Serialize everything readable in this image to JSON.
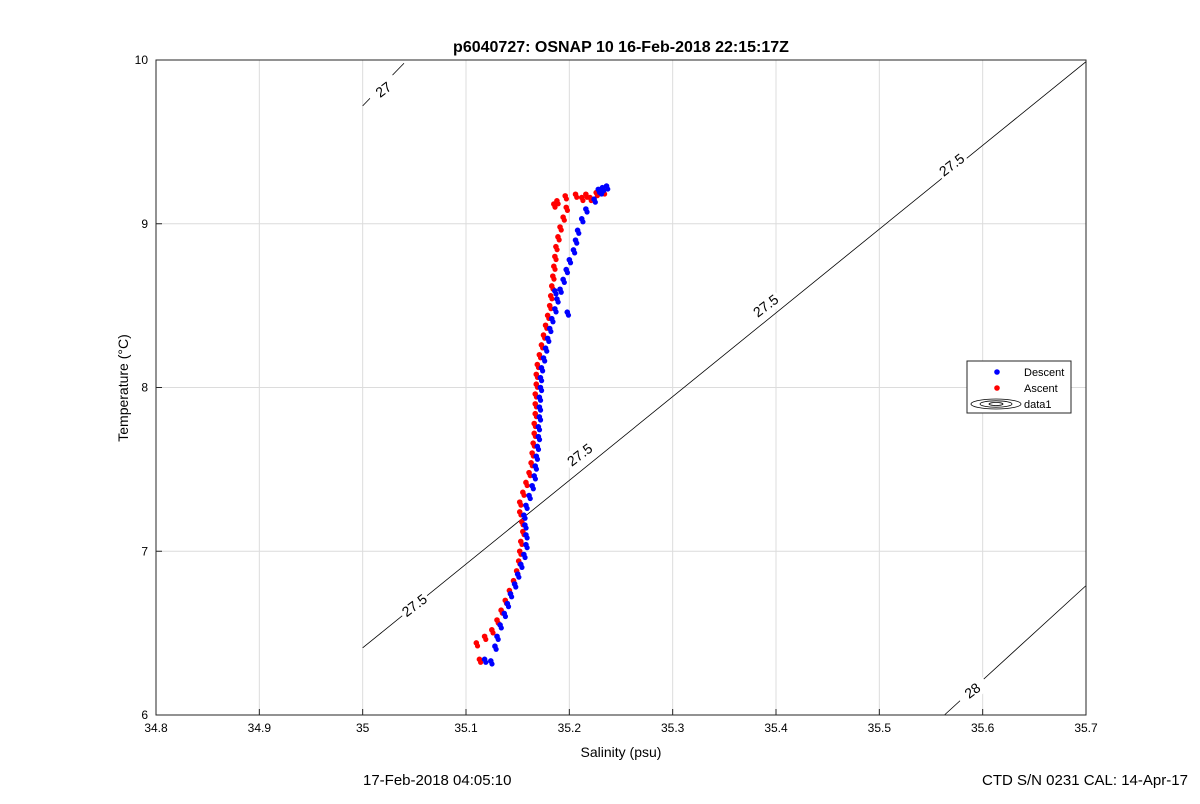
{
  "chart_data": {
    "type": "scatter",
    "title": "p6040727: OSNAP 10 16-Feb-2018 22:15:17Z",
    "xlabel": "Salinity (psu)",
    "ylabel": "Temperature (°C)",
    "xlim": [
      34.8,
      35.7
    ],
    "ylim": [
      6,
      10
    ],
    "xticks": [
      "34.8",
      "34.9",
      "35",
      "35.1",
      "35.2",
      "35.3",
      "35.4",
      "35.5",
      "35.6",
      "35.7"
    ],
    "yticks": [
      "6",
      "7",
      "8",
      "9",
      "10"
    ],
    "grid": true,
    "legend_position": "right",
    "legend": [
      "Descent",
      "Ascent",
      "data1"
    ],
    "series": [
      {
        "name": "Descent",
        "color": "#0000ff",
        "points": [
          [
            35.124,
            6.33
          ],
          [
            35.118,
            6.34
          ],
          [
            35.128,
            6.42
          ],
          [
            35.13,
            6.48
          ],
          [
            35.133,
            6.55
          ],
          [
            35.137,
            6.62
          ],
          [
            35.14,
            6.68
          ],
          [
            35.143,
            6.74
          ],
          [
            35.147,
            6.8
          ],
          [
            35.15,
            6.86
          ],
          [
            35.153,
            6.92
          ],
          [
            35.156,
            6.98
          ],
          [
            35.158,
            7.04
          ],
          [
            35.158,
            7.1
          ],
          [
            35.157,
            7.16
          ],
          [
            35.156,
            7.22
          ],
          [
            35.158,
            7.28
          ],
          [
            35.161,
            7.34
          ],
          [
            35.164,
            7.4
          ],
          [
            35.166,
            7.46
          ],
          [
            35.167,
            7.52
          ],
          [
            35.168,
            7.58
          ],
          [
            35.169,
            7.64
          ],
          [
            35.17,
            7.7
          ],
          [
            35.17,
            7.76
          ],
          [
            35.171,
            7.82
          ],
          [
            35.171,
            7.88
          ],
          [
            35.171,
            7.94
          ],
          [
            35.172,
            8.0
          ],
          [
            35.172,
            8.06
          ],
          [
            35.173,
            8.12
          ],
          [
            35.175,
            8.18
          ],
          [
            35.177,
            8.24
          ],
          [
            35.179,
            8.3
          ],
          [
            35.181,
            8.36
          ],
          [
            35.183,
            8.42
          ],
          [
            35.186,
            8.48
          ],
          [
            35.188,
            8.54
          ],
          [
            35.191,
            8.6
          ],
          [
            35.194,
            8.66
          ],
          [
            35.197,
            8.72
          ],
          [
            35.2,
            8.78
          ],
          [
            35.204,
            8.84
          ],
          [
            35.206,
            8.9
          ],
          [
            35.208,
            8.96
          ],
          [
            35.212,
            9.03
          ],
          [
            35.216,
            9.09
          ],
          [
            35.224,
            9.15
          ],
          [
            35.23,
            9.2
          ],
          [
            35.236,
            9.23
          ],
          [
            35.232,
            9.22
          ],
          [
            35.228,
            9.21
          ],
          [
            35.198,
            8.46
          ],
          [
            35.186,
            8.59
          ]
        ]
      },
      {
        "name": "Ascent",
        "color": "#ff0000",
        "points": [
          [
            35.113,
            6.34
          ],
          [
            35.11,
            6.44
          ],
          [
            35.118,
            6.48
          ],
          [
            35.125,
            6.52
          ],
          [
            35.13,
            6.58
          ],
          [
            35.134,
            6.64
          ],
          [
            35.138,
            6.7
          ],
          [
            35.142,
            6.76
          ],
          [
            35.146,
            6.82
          ],
          [
            35.149,
            6.88
          ],
          [
            35.151,
            6.94
          ],
          [
            35.152,
            7.0
          ],
          [
            35.153,
            7.06
          ],
          [
            35.155,
            7.12
          ],
          [
            35.154,
            7.18
          ],
          [
            35.152,
            7.24
          ],
          [
            35.152,
            7.3
          ],
          [
            35.155,
            7.36
          ],
          [
            35.158,
            7.42
          ],
          [
            35.161,
            7.48
          ],
          [
            35.163,
            7.54
          ],
          [
            35.164,
            7.6
          ],
          [
            35.165,
            7.66
          ],
          [
            35.166,
            7.72
          ],
          [
            35.166,
            7.78
          ],
          [
            35.167,
            7.84
          ],
          [
            35.167,
            7.9
          ],
          [
            35.167,
            7.96
          ],
          [
            35.168,
            8.02
          ],
          [
            35.168,
            8.08
          ],
          [
            35.169,
            8.14
          ],
          [
            35.171,
            8.2
          ],
          [
            35.173,
            8.26
          ],
          [
            35.175,
            8.32
          ],
          [
            35.177,
            8.38
          ],
          [
            35.179,
            8.44
          ],
          [
            35.181,
            8.5
          ],
          [
            35.182,
            8.56
          ],
          [
            35.183,
            8.62
          ],
          [
            35.184,
            8.68
          ],
          [
            35.185,
            8.74
          ],
          [
            35.186,
            8.8
          ],
          [
            35.187,
            8.86
          ],
          [
            35.189,
            8.92
          ],
          [
            35.191,
            8.98
          ],
          [
            35.194,
            9.04
          ],
          [
            35.197,
            9.1
          ],
          [
            35.188,
            9.14
          ],
          [
            35.196,
            9.17
          ],
          [
            35.206,
            9.18
          ],
          [
            35.216,
            9.18
          ],
          [
            35.226,
            9.19
          ],
          [
            35.233,
            9.2
          ],
          [
            35.212,
            9.16
          ],
          [
            35.185,
            9.12
          ],
          [
            35.22,
            9.16
          ]
        ]
      }
    ],
    "contours": [
      {
        "label": "27",
        "label_at": [
          35.02,
          9.82
        ]
      },
      {
        "label": "27.5",
        "label_at": [
          35.05,
          6.67
        ]
      },
      {
        "label": "27.5",
        "label_at": [
          35.21,
          7.59
        ]
      },
      {
        "label": "27.5",
        "label_at": [
          35.39,
          8.5
        ]
      },
      {
        "label": "27.5",
        "label_at": [
          35.57,
          9.36
        ]
      },
      {
        "label": "28",
        "label_at": [
          35.59,
          6.15
        ]
      }
    ]
  },
  "footer": {
    "left": "17-Feb-2018 04:05:10",
    "right": "CTD S/N 0231  CAL: 14-Apr-17"
  }
}
